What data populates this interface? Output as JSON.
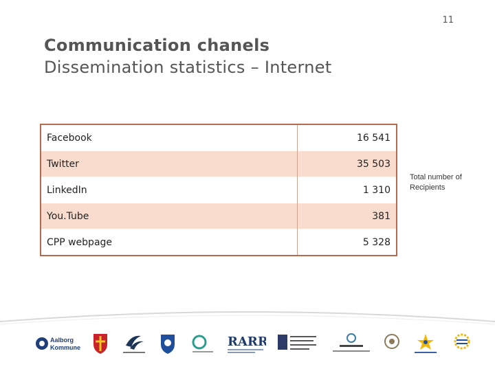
{
  "page_number": "11",
  "title": "Communication chanels",
  "subtitle": "Dissemination statistics – Internet",
  "table": {
    "rows": [
      {
        "channel": "Facebook",
        "value": "16 541"
      },
      {
        "channel": "Twitter",
        "value": "35 503"
      },
      {
        "channel": "LinkedIn",
        "value": "1 310"
      },
      {
        "channel": "You.Tube",
        "value": "381"
      },
      {
        "channel": "CPP webpage",
        "value": "5 328"
      }
    ]
  },
  "side_label": "Total number of Recipients",
  "colors": {
    "row_shade": "#f9dccd",
    "table_border": "#b56a4d"
  },
  "logos": {
    "aalborg": "Aalborg Kommune",
    "rarr": "RARR"
  }
}
